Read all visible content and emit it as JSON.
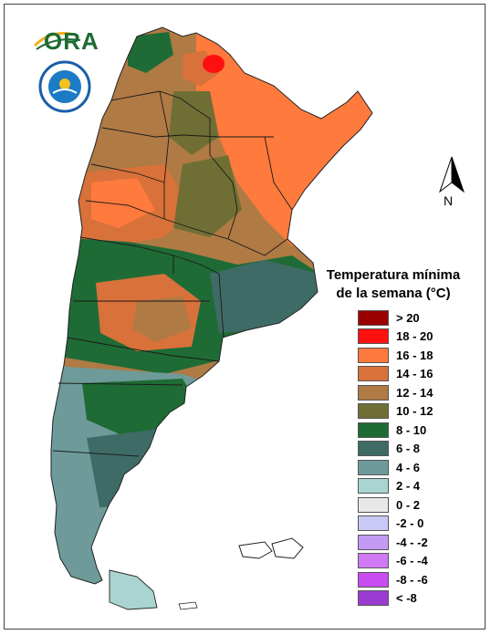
{
  "logo": {
    "text": "ORA",
    "seal_name": "servicio-meteorologico-nacional-seal"
  },
  "compass": {
    "label": "N"
  },
  "legend": {
    "title_line1": "Temperatura mínima",
    "title_line2": "de la semana (°C)",
    "items": [
      {
        "label": "> 20",
        "color": "#9b0000"
      },
      {
        "label": "18 - 20",
        "color": "#ff1010"
      },
      {
        "label": "16 - 18",
        "color": "#ff7a3d"
      },
      {
        "label": "14 - 16",
        "color": "#d9713a"
      },
      {
        "label": "12 - 14",
        "color": "#b07a44"
      },
      {
        "label": "10 - 12",
        "color": "#6f6f35"
      },
      {
        "label": "8 - 10",
        "color": "#1f6b35"
      },
      {
        "label": "6 - 8",
        "color": "#3f6b66"
      },
      {
        "label": "4 - 6",
        "color": "#6e9b9a"
      },
      {
        "label": "2 - 4",
        "color": "#a9d4cf"
      },
      {
        "label": "0 - 2",
        "color": "#e8e8e8"
      },
      {
        "label": "-2 - 0",
        "color": "#c9c9f5"
      },
      {
        "label": "-4 - -2",
        "color": "#c49af5"
      },
      {
        "label": "-6 - -4",
        "color": "#d27af5"
      },
      {
        "label": "-8 - -6",
        "color": "#c94cf0"
      },
      {
        "label": "< -8",
        "color": "#9a3bd1"
      }
    ]
  }
}
